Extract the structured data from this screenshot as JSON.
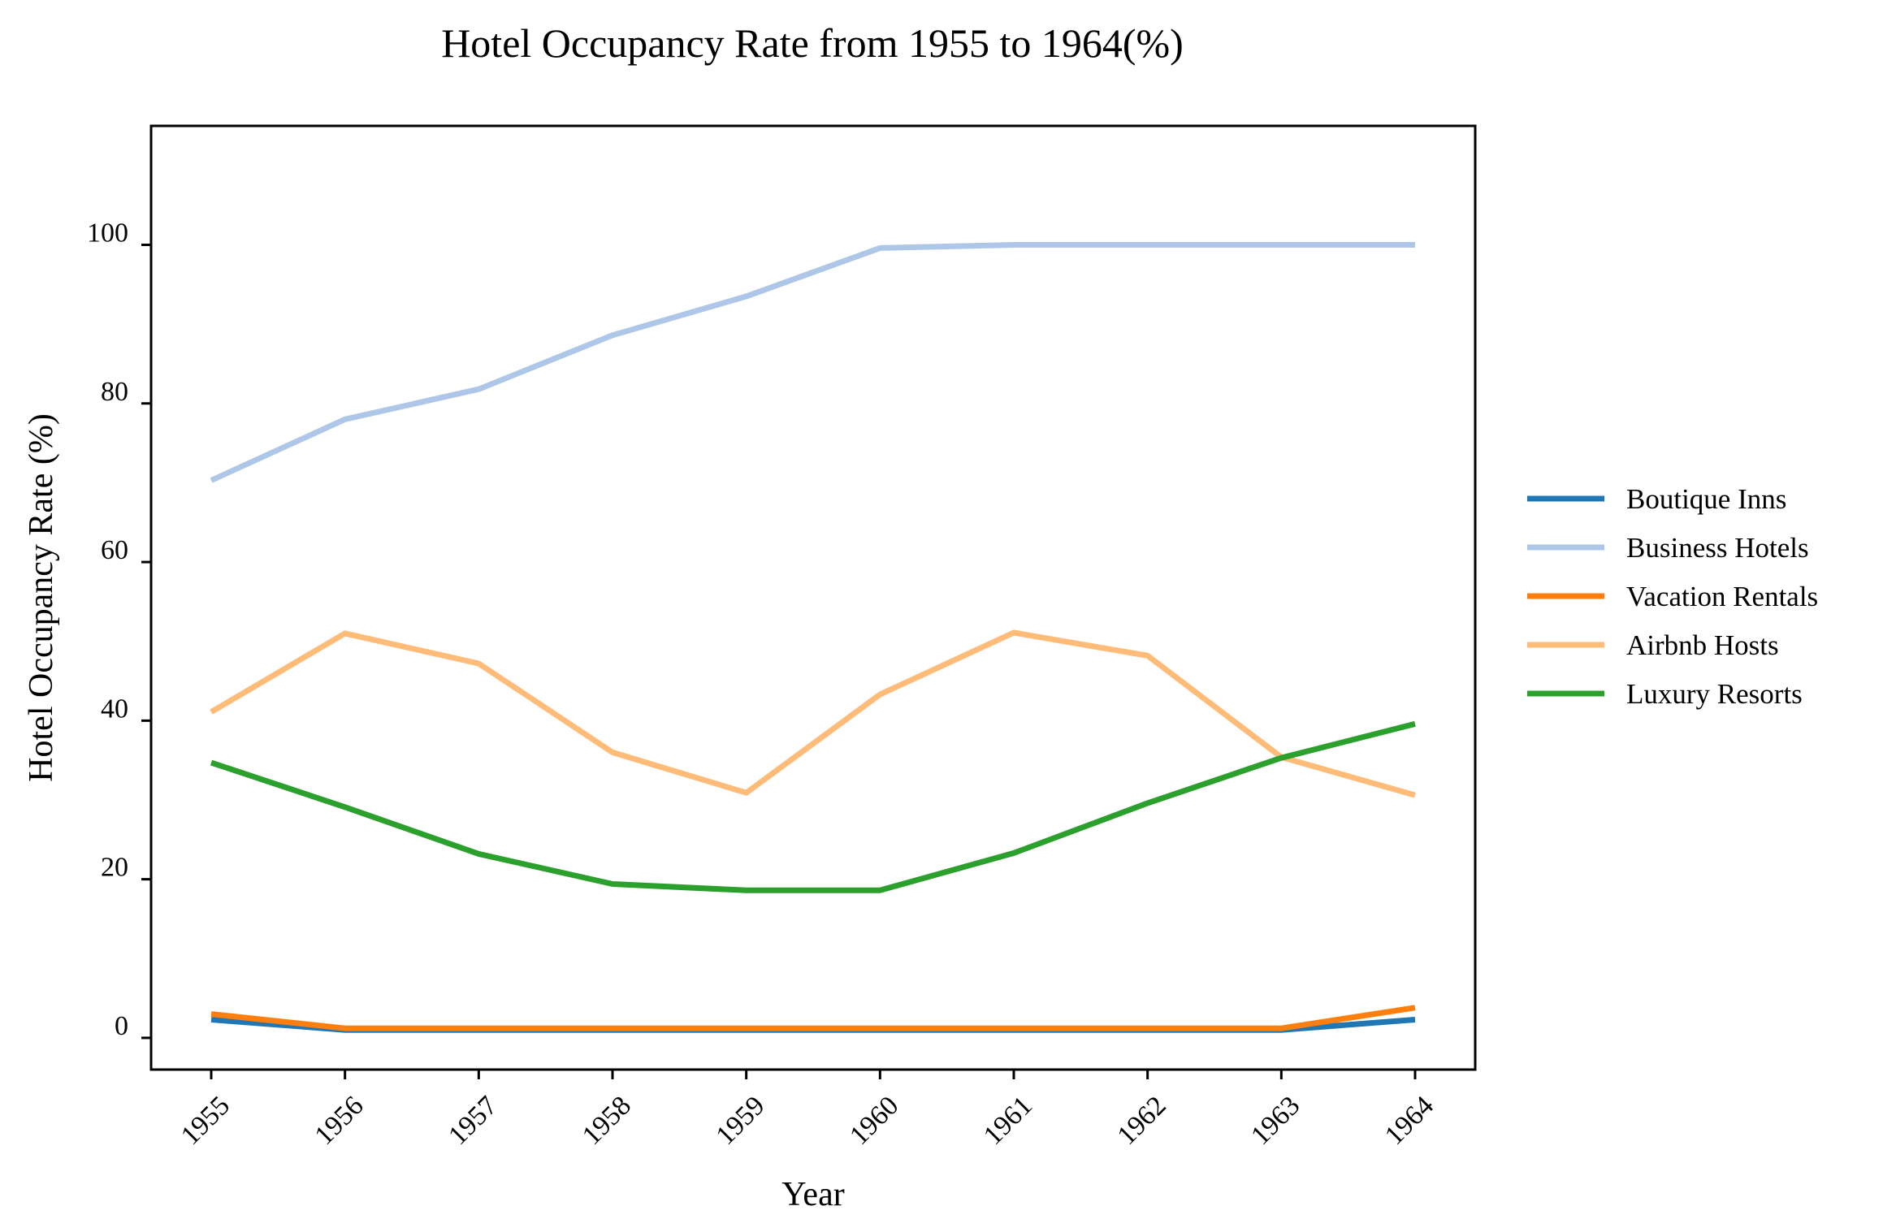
{
  "chart_data": {
    "type": "line",
    "title": "Hotel Occupancy Rate from 1955 to 1964(%)",
    "xlabel": "Year",
    "ylabel": "Hotel Occupancy Rate (%)",
    "x": [
      "1955",
      "1956",
      "1957",
      "1958",
      "1959",
      "1960",
      "1961",
      "1962",
      "1963",
      "1964"
    ],
    "yticks": [
      0,
      20,
      40,
      60,
      80,
      100
    ],
    "ylim": [
      -4,
      115
    ],
    "grid": false,
    "legend_position": "right",
    "series": [
      {
        "name": "Boutique Inns",
        "color": "#1f77b4",
        "values": [
          2.3,
          1.0,
          1.0,
          1.0,
          1.0,
          1.0,
          1.0,
          1.0,
          1.0,
          2.3
        ]
      },
      {
        "name": "Business Hotels",
        "color": "#aec7e8",
        "values": [
          70.3,
          78.0,
          81.8,
          88.6,
          93.5,
          99.6,
          100.0,
          100.0,
          100.0,
          100.0
        ]
      },
      {
        "name": "Vacation Rentals",
        "color": "#ff7f0e",
        "values": [
          3.0,
          1.2,
          1.2,
          1.2,
          1.2,
          1.2,
          1.2,
          1.2,
          1.2,
          3.8
        ]
      },
      {
        "name": "Airbnb Hosts",
        "color": "#ffbb78",
        "values": [
          41.1,
          51.0,
          47.2,
          36.0,
          30.9,
          43.3,
          51.1,
          48.2,
          35.4,
          30.6
        ]
      },
      {
        "name": "Luxury Resorts",
        "color": "#2ca02c",
        "values": [
          34.7,
          29.1,
          23.2,
          19.4,
          18.6,
          18.6,
          23.3,
          29.6,
          35.3,
          39.6
        ]
      }
    ]
  }
}
